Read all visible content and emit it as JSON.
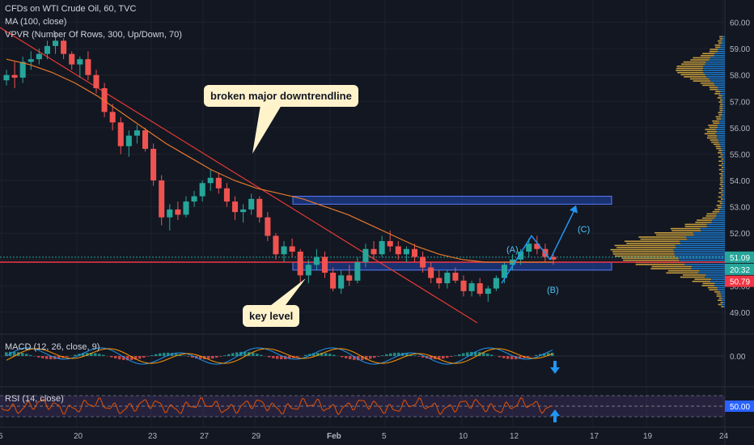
{
  "header": {
    "title": "CFDs on WTI Crude Oil, 60, TVC",
    "indicator_1": "MA (100, close)",
    "indicator_2": "VPVR (Number Of Rows, 300, Up/Down, 70)"
  },
  "annotations": {
    "trendline_callout": "broken major downtrendline",
    "key_level_callout": "key level",
    "wave_a": "(A)",
    "wave_b": "(B)",
    "wave_c": "(C)"
  },
  "macd": {
    "label": "MACD (12, 26, close, 9)",
    "zero_label": "0.00"
  },
  "rsi": {
    "label": "RSI (14, close)",
    "level_label": "50.00"
  },
  "price_tags": {
    "tag_1": "51.09",
    "tag_2": "20:32",
    "tag_3": "50.79"
  },
  "colors": {
    "background": "#131722",
    "bull": "#26a69a",
    "bear": "#ef5350",
    "ma": "#e8782a",
    "key_level_line": "#f23645",
    "downtrend_line": "#e53935",
    "zone_fill": "#2962ff",
    "projection": "#2196f3",
    "vp_up": "#e3b341",
    "vp_down": "#1e88e5",
    "rsi_line": "#e65100",
    "callout_bg": "#fff3cc"
  },
  "chart_data": {
    "type": "candlestick",
    "symbol": "CFDs on WTI Crude Oil",
    "timeframe": "60",
    "y_axis": {
      "ticks": [
        "49.00",
        "50.00",
        "51.00",
        "52.00",
        "53.00",
        "54.00",
        "55.00",
        "56.00",
        "57.00",
        "58.00",
        "59.00",
        "60.00"
      ],
      "range": [
        48.2,
        60.6
      ]
    },
    "x_axis": {
      "ticks": [
        "5",
        "20",
        "23",
        "27",
        "29",
        "Feb",
        "5",
        "10",
        "12",
        "17",
        "19",
        "24"
      ]
    },
    "ohlc_approx": [
      [
        57.8,
        58.2,
        57.6,
        58.0
      ],
      [
        58.0,
        58.5,
        57.5,
        57.9
      ],
      [
        57.9,
        58.7,
        57.7,
        58.5
      ],
      [
        58.5,
        58.9,
        58.2,
        58.6
      ],
      [
        58.6,
        59.0,
        58.4,
        58.8
      ],
      [
        58.8,
        59.3,
        58.6,
        59.1
      ],
      [
        59.1,
        59.6,
        58.8,
        59.3
      ],
      [
        59.3,
        59.4,
        58.6,
        58.8
      ],
      [
        58.8,
        58.9,
        58.2,
        58.4
      ],
      [
        58.4,
        58.7,
        57.9,
        58.6
      ],
      [
        58.6,
        58.9,
        57.8,
        58.0
      ],
      [
        58.0,
        58.2,
        57.3,
        57.5
      ],
      [
        57.5,
        57.7,
        56.4,
        56.6
      ],
      [
        56.6,
        56.9,
        55.9,
        56.2
      ],
      [
        56.2,
        56.4,
        55.0,
        55.3
      ],
      [
        55.3,
        55.9,
        54.9,
        55.7
      ],
      [
        55.7,
        56.1,
        55.4,
        55.9
      ],
      [
        55.9,
        56.0,
        55.1,
        55.2
      ],
      [
        55.2,
        55.4,
        53.8,
        54.0
      ],
      [
        54.0,
        54.2,
        52.3,
        52.6
      ],
      [
        52.6,
        53.1,
        52.1,
        52.9
      ],
      [
        52.9,
        53.2,
        52.5,
        52.7
      ],
      [
        52.7,
        53.4,
        52.6,
        53.2
      ],
      [
        53.2,
        53.6,
        53.0,
        53.4
      ],
      [
        53.4,
        54.0,
        53.2,
        53.9
      ],
      [
        53.9,
        54.4,
        53.6,
        54.1
      ],
      [
        54.1,
        54.3,
        53.5,
        53.7
      ],
      [
        53.7,
        53.9,
        53.0,
        53.2
      ],
      [
        53.2,
        53.4,
        52.5,
        52.8
      ],
      [
        52.8,
        53.1,
        52.4,
        52.9
      ],
      [
        52.9,
        53.5,
        52.7,
        53.3
      ],
      [
        53.3,
        53.4,
        52.4,
        52.6
      ],
      [
        52.6,
        52.8,
        51.7,
        51.9
      ],
      [
        51.9,
        52.0,
        51.0,
        51.2
      ],
      [
        51.2,
        51.7,
        50.9,
        51.5
      ],
      [
        51.5,
        51.8,
        51.1,
        51.3
      ],
      [
        51.3,
        51.4,
        50.1,
        50.4
      ],
      [
        50.4,
        51.0,
        50.1,
        50.8
      ],
      [
        50.8,
        51.4,
        50.6,
        51.1
      ],
      [
        51.1,
        51.3,
        50.3,
        50.5
      ],
      [
        50.5,
        50.7,
        49.8,
        49.9
      ],
      [
        49.9,
        50.6,
        49.7,
        50.4
      ],
      [
        50.4,
        50.8,
        50.0,
        50.2
      ],
      [
        50.2,
        51.1,
        50.1,
        50.9
      ],
      [
        50.9,
        51.6,
        50.7,
        51.4
      ],
      [
        51.4,
        51.7,
        51.0,
        51.2
      ],
      [
        51.2,
        51.9,
        51.1,
        51.7
      ],
      [
        51.7,
        52.1,
        51.3,
        51.5
      ],
      [
        51.5,
        51.7,
        51.0,
        51.2
      ],
      [
        51.2,
        51.5,
        50.9,
        51.4
      ],
      [
        51.4,
        51.6,
        50.9,
        51.1
      ],
      [
        51.1,
        51.3,
        50.5,
        50.7
      ],
      [
        50.7,
        50.9,
        50.1,
        50.3
      ],
      [
        50.3,
        50.6,
        49.9,
        50.1
      ],
      [
        50.1,
        50.6,
        49.9,
        50.5
      ],
      [
        50.5,
        50.7,
        50.1,
        50.2
      ],
      [
        50.2,
        50.4,
        49.6,
        49.8
      ],
      [
        49.8,
        50.2,
        49.6,
        50.1
      ],
      [
        50.1,
        50.3,
        49.6,
        49.7
      ],
      [
        49.7,
        50.0,
        49.4,
        49.9
      ],
      [
        49.9,
        50.4,
        49.8,
        50.3
      ],
      [
        50.3,
        50.9,
        50.1,
        50.8
      ],
      [
        50.8,
        51.2,
        50.6,
        51.0
      ],
      [
        51.0,
        51.4,
        50.8,
        51.3
      ],
      [
        51.3,
        51.8,
        51.1,
        51.6
      ],
      [
        51.6,
        51.9,
        51.2,
        51.4
      ],
      [
        51.4,
        51.6,
        50.9,
        51.1
      ],
      [
        51.1,
        51.2,
        50.8,
        51.0
      ]
    ],
    "ma_100_approx": [
      58.6,
      58.4,
      58.1,
      57.7,
      57.2,
      56.6,
      56.0,
      55.4,
      54.9,
      54.4,
      54.0,
      53.7,
      53.5,
      53.3,
      53.0,
      52.7,
      52.3,
      51.9,
      51.5,
      51.2,
      51.0,
      50.9,
      50.9,
      50.9,
      50.9
    ],
    "levels": {
      "key_level": 50.9,
      "current_price": 51.09,
      "lower_zone": [
        50.6,
        50.9
      ],
      "upper_zone": [
        53.1,
        53.4
      ]
    },
    "downtrend_line": {
      "from": 59.8,
      "to": 48.6
    },
    "projection": {
      "wave_a": 51.9,
      "wave_b": 51.0,
      "wave_c": 53.0
    },
    "volume_profile_note": "Visible range volume profile, high-volume node near 51-52"
  }
}
